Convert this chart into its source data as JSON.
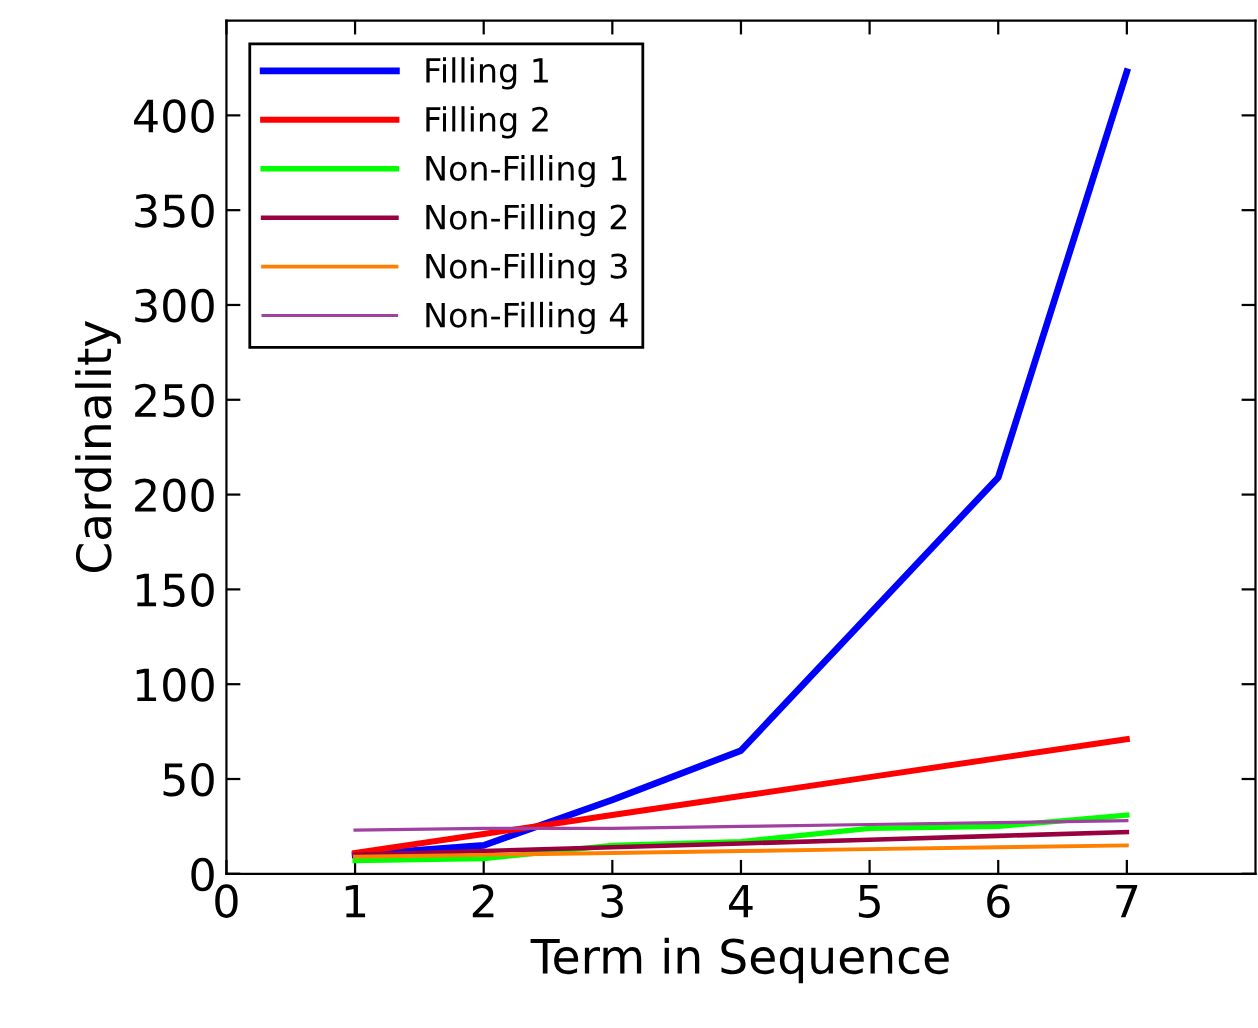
{
  "chart_data": {
    "type": "line",
    "xlabel": "Term in Sequence",
    "ylabel": "Cardinality",
    "x": [
      1,
      2,
      3,
      4,
      5,
      6,
      7
    ],
    "xlim": [
      0,
      8
    ],
    "xticks": [
      0,
      1,
      2,
      3,
      4,
      5,
      6,
      7
    ],
    "ylim": [
      0,
      450
    ],
    "yticks": [
      0,
      50,
      100,
      150,
      200,
      250,
      300,
      350,
      400
    ],
    "grid": false,
    "legend": "top left",
    "marker": "none",
    "line_style": "solid",
    "series": [
      {
        "name": "Filling 1",
        "color": "#0000ff",
        "values": [
          10,
          15,
          39,
          65,
          137,
          209,
          423
        ]
      },
      {
        "name": "Filling 2",
        "color": "#ff0000",
        "values": [
          11,
          21,
          31,
          41,
          51,
          61,
          71
        ]
      },
      {
        "name": "Non-Filling 1",
        "color": "#00ff00",
        "values": [
          7,
          8,
          15,
          17,
          24,
          25,
          31
        ]
      },
      {
        "name": "Non-Filling 2",
        "color": "#990040",
        "values": [
          10,
          12,
          14,
          16,
          18,
          20,
          22
        ]
      },
      {
        "name": "Non-Filling 3",
        "color": "#ff8000",
        "values": [
          9,
          10,
          11,
          12,
          13,
          14,
          15
        ]
      },
      {
        "name": "Non-Filling 4",
        "color": "#a040a0",
        "values": [
          23,
          24,
          24,
          25,
          26,
          27,
          28
        ]
      }
    ]
  }
}
